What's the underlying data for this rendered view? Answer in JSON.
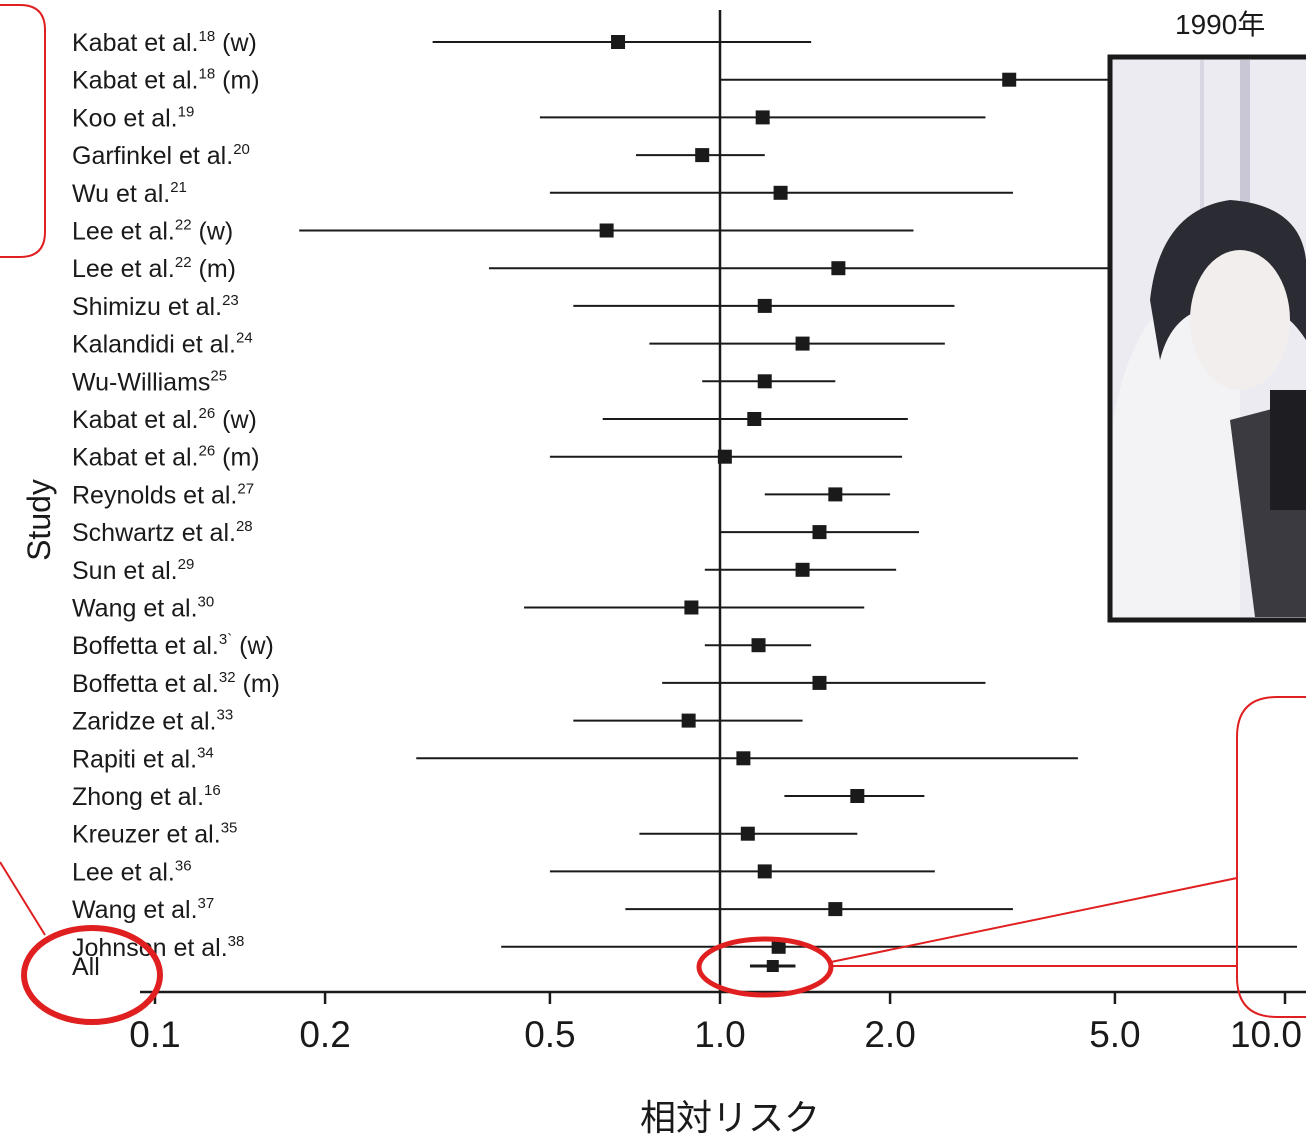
{
  "photo_caption": "1990年",
  "chart_data": {
    "type": "forest",
    "ylabel": "Study",
    "xlabel": "相対リスク",
    "x_scale": "log",
    "xlim": [
      0.09,
      10.5
    ],
    "x_ticks": [
      0.1,
      0.2,
      0.5,
      1.0,
      2.0,
      5.0,
      10.0
    ],
    "x_tick_labels": [
      "0.1",
      "0.2",
      "0.5",
      "1.0",
      "2.0",
      "5.0",
      "10.0"
    ],
    "reference_line": 1.0,
    "studies": [
      {
        "label": "Kabat et al.",
        "ref": "18",
        "suffix": " (w)",
        "estimate": 0.66,
        "lower": 0.31,
        "upper": 1.45
      },
      {
        "label": "Kabat et al.",
        "ref": "18",
        "suffix": " (m)",
        "estimate": 3.25,
        "lower": 1.0,
        "upper": 10.5
      },
      {
        "label": "Koo et al.",
        "ref": "19",
        "suffix": "",
        "estimate": 1.19,
        "lower": 0.48,
        "upper": 2.95
      },
      {
        "label": "Garfinkel et al.",
        "ref": "20",
        "suffix": "",
        "estimate": 0.93,
        "lower": 0.71,
        "upper": 1.2
      },
      {
        "label": "Wu et al.",
        "ref": "21",
        "suffix": "",
        "estimate": 1.28,
        "lower": 0.5,
        "upper": 3.3
      },
      {
        "label": "Lee et al.",
        "ref": "22",
        "suffix": " (w)",
        "estimate": 0.63,
        "lower": 0.18,
        "upper": 2.2
      },
      {
        "label": "Lee et al.",
        "ref": "22",
        "suffix": " (m)",
        "estimate": 1.62,
        "lower": 0.39,
        "upper": 10.5
      },
      {
        "label": "Shimizu et al.",
        "ref": "23",
        "suffix": "",
        "estimate": 1.2,
        "lower": 0.55,
        "upper": 2.6
      },
      {
        "label": "Kalandidi et al.",
        "ref": "24",
        "suffix": "",
        "estimate": 1.4,
        "lower": 0.75,
        "upper": 2.5
      },
      {
        "label": "Wu-Williams",
        "ref": "25",
        "suffix": "",
        "estimate": 1.2,
        "lower": 0.93,
        "upper": 1.6
      },
      {
        "label": "Kabat et al.",
        "ref": "26",
        "suffix": " (w)",
        "estimate": 1.15,
        "lower": 0.62,
        "upper": 2.15
      },
      {
        "label": "Kabat et al.",
        "ref": "26",
        "suffix": " (m)",
        "estimate": 1.02,
        "lower": 0.5,
        "upper": 2.1
      },
      {
        "label": "Reynolds et al.",
        "ref": "27",
        "suffix": "",
        "estimate": 1.6,
        "lower": 1.2,
        "upper": 2.0
      },
      {
        "label": "Schwartz et al.",
        "ref": "28",
        "suffix": "",
        "estimate": 1.5,
        "lower": 1.0,
        "upper": 2.25
      },
      {
        "label": "Sun et al.",
        "ref": "29",
        "suffix": "",
        "estimate": 1.4,
        "lower": 0.94,
        "upper": 2.05
      },
      {
        "label": "Wang et al.",
        "ref": "30",
        "suffix": "",
        "estimate": 0.89,
        "lower": 0.45,
        "upper": 1.8
      },
      {
        "label": "Boffetta et al.",
        "ref": "3`",
        "suffix": " (w)",
        "estimate": 1.17,
        "lower": 0.94,
        "upper": 1.45
      },
      {
        "label": "Boffetta et al.",
        "ref": "32",
        "suffix": " (m)",
        "estimate": 1.5,
        "lower": 0.79,
        "upper": 2.95
      },
      {
        "label": "Zaridze et al.",
        "ref": "33",
        "suffix": "",
        "estimate": 0.88,
        "lower": 0.55,
        "upper": 1.4
      },
      {
        "label": "Rapiti et al.",
        "ref": "34",
        "suffix": "",
        "estimate": 1.1,
        "lower": 0.29,
        "upper": 4.3
      },
      {
        "label": "Zhong et al.",
        "ref": "16",
        "suffix": "",
        "estimate": 1.75,
        "lower": 1.3,
        "upper": 2.3
      },
      {
        "label": "Kreuzer et al.",
        "ref": "35",
        "suffix": "",
        "estimate": 1.12,
        "lower": 0.72,
        "upper": 1.75
      },
      {
        "label": "Lee et al.",
        "ref": "36",
        "suffix": "",
        "estimate": 1.2,
        "lower": 0.5,
        "upper": 2.4
      },
      {
        "label": "Wang et al.",
        "ref": "37",
        "suffix": "",
        "estimate": 1.6,
        "lower": 0.68,
        "upper": 3.3
      },
      {
        "label": "Johnson et al.",
        "ref": "38",
        "suffix": "",
        "estimate": 1.27,
        "lower": 0.41,
        "upper": 10.5
      },
      {
        "label": "All",
        "ref": "",
        "suffix": "",
        "estimate": 1.24,
        "lower": 1.13,
        "upper": 1.36
      }
    ]
  },
  "colors": {
    "annotation": "#e02020",
    "marker": "#1a1a1a"
  }
}
